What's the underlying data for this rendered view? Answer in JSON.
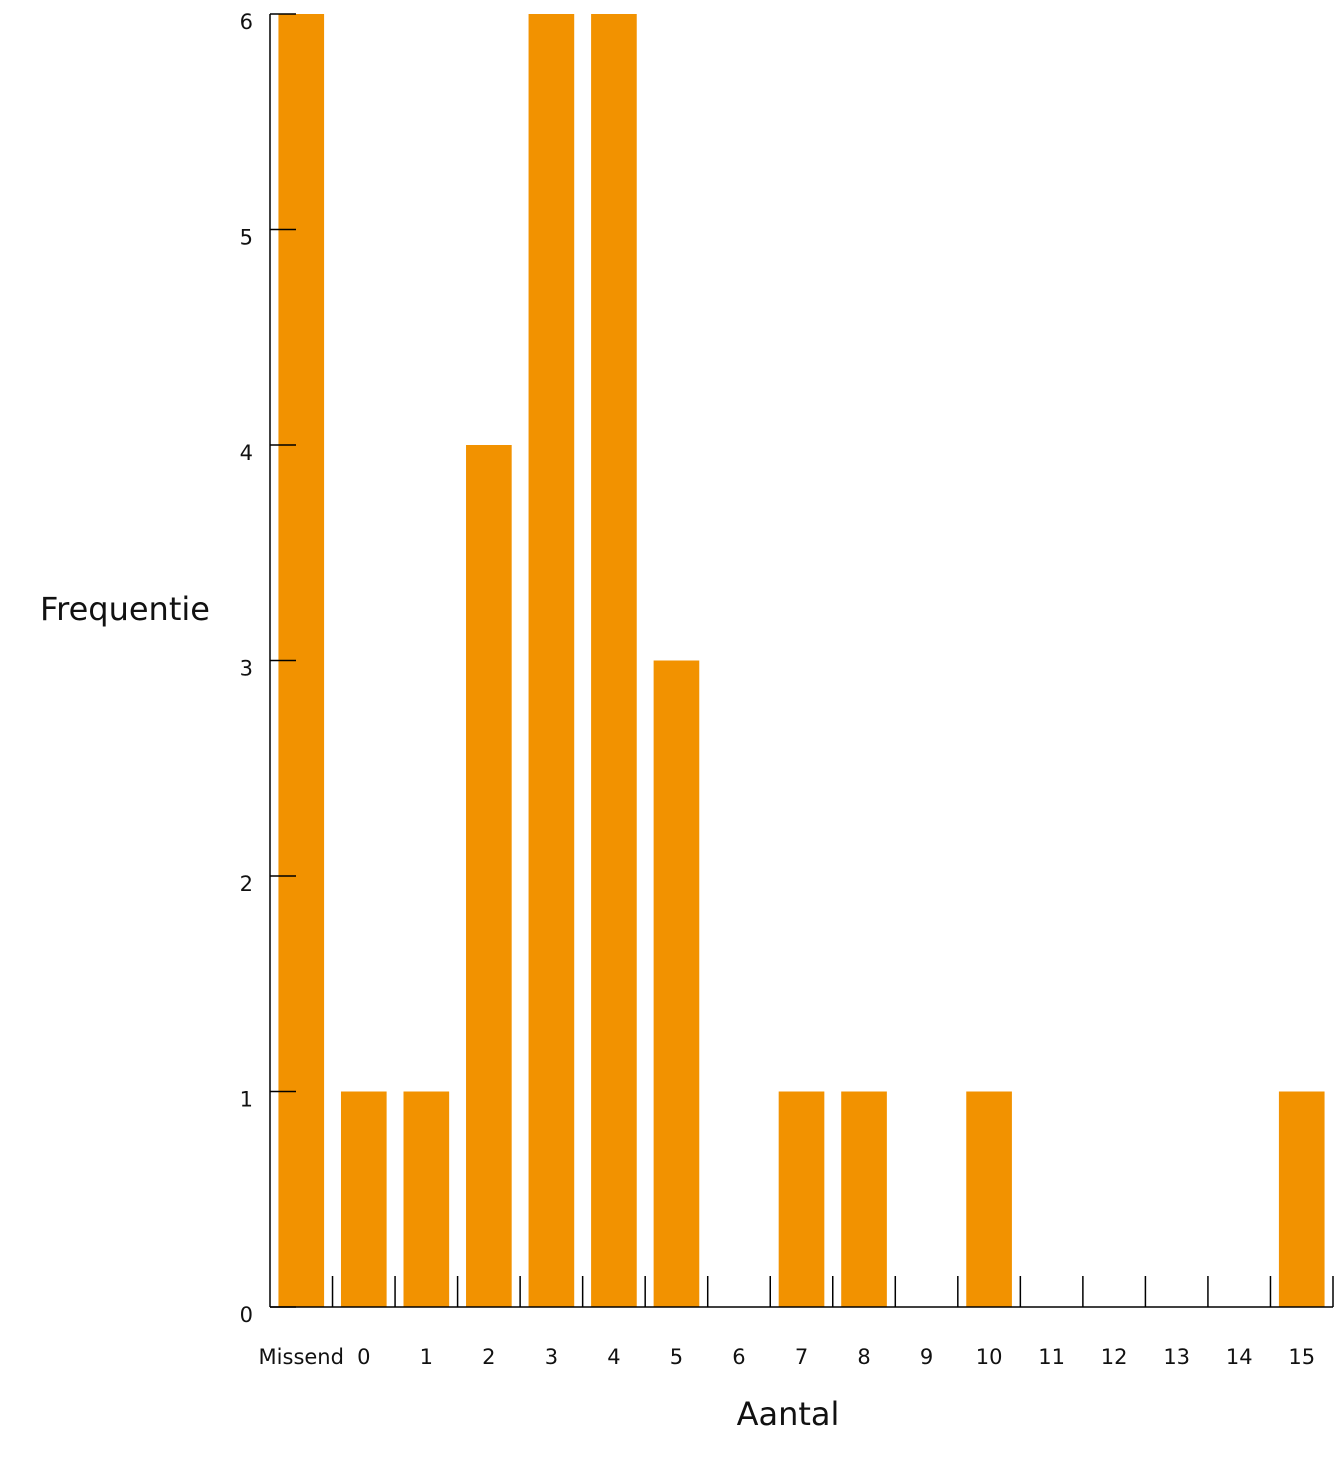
{
  "chart_data": {
    "type": "bar",
    "title": "",
    "xlabel": "Aantal",
    "ylabel": "Frequentie",
    "categories": [
      "Missend",
      "0",
      "1",
      "2",
      "3",
      "4",
      "5",
      "6",
      "7",
      "8",
      "9",
      "10",
      "11",
      "12",
      "13",
      "14",
      "15"
    ],
    "values": [
      6,
      1,
      1,
      4,
      6,
      6,
      3,
      0,
      1,
      1,
      0,
      1,
      0,
      0,
      0,
      0,
      1
    ],
    "yticks": [
      "0",
      "1",
      "2",
      "3",
      "4",
      "5",
      "6"
    ],
    "ylim": [
      0,
      6
    ],
    "grid": false,
    "legend": "none",
    "bar_color": "#F29200",
    "axis_color": "#000000"
  }
}
